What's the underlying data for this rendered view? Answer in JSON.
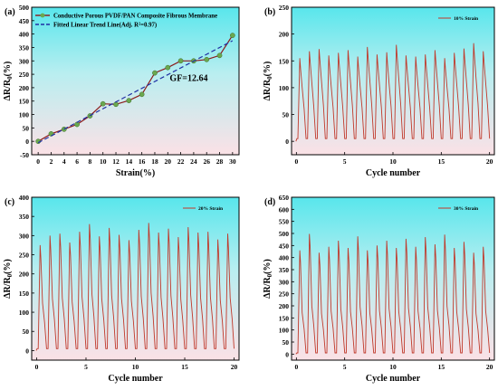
{
  "chart_data": [
    {
      "panel_label": "(a)",
      "type": "line",
      "xlabel": "Strain(%)",
      "ylabel": "ΔR/R0(%)",
      "xlim": [
        -1,
        31
      ],
      "ylim": [
        -50,
        500
      ],
      "xticks": [
        0,
        2,
        4,
        6,
        8,
        10,
        12,
        14,
        16,
        18,
        20,
        22,
        24,
        26,
        28,
        30
      ],
      "yticks": [
        -50,
        0,
        50,
        100,
        150,
        200,
        250,
        300,
        350,
        400,
        450,
        500
      ],
      "background": "gradient cyan-to-pink",
      "legend_position": "top-left",
      "annotation": "GF=12.64",
      "series": [
        {
          "name": "Conductive Porous PVDF/PAN Composite Fibrous Membrane",
          "color": "#8b1a1a",
          "marker_color": "#6aa84f",
          "x": [
            0,
            2,
            4,
            6,
            8,
            10,
            12,
            14,
            16,
            18,
            20,
            22,
            24,
            26,
            28,
            30
          ],
          "y": [
            0,
            28,
            45,
            63,
            95,
            140,
            138,
            152,
            175,
            255,
            275,
            300,
            300,
            305,
            320,
            395
          ]
        },
        {
          "name": "Fitted Linear Trend Line(Adj. R²=0.97)",
          "style": "dashed",
          "color": "#1f2fa3",
          "x": [
            0,
            30
          ],
          "y": [
            -5,
            375
          ]
        }
      ]
    },
    {
      "panel_label": "(b)",
      "type": "line",
      "xlabel": "Cycle number",
      "ylabel": "ΔR/R0(%)",
      "xlim": [
        -0.5,
        20.5
      ],
      "ylim": [
        -25,
        250
      ],
      "xticks": [
        0,
        5,
        10,
        15,
        20
      ],
      "yticks": [
        0,
        50,
        100,
        150,
        200,
        250
      ],
      "legend_position": "top-right",
      "series": [
        {
          "name": "10% Strain",
          "color": "#c0392b",
          "cycles": 20,
          "peaks": [
            155,
            168,
            172,
            160,
            165,
            170,
            158,
            176,
            162,
            166,
            180,
            160,
            158,
            162,
            170,
            155,
            165,
            173,
            183,
            168
          ],
          "shoulder_fraction": 0.65,
          "valley": 5
        }
      ]
    },
    {
      "panel_label": "(c)",
      "type": "line",
      "xlabel": "Cycle number",
      "ylabel": "ΔR/R0(%)",
      "xlim": [
        -0.5,
        20.5
      ],
      "ylim": [
        -25,
        400
      ],
      "xticks": [
        0,
        5,
        10,
        15,
        20
      ],
      "yticks": [
        0,
        50,
        100,
        150,
        200,
        250,
        300,
        350,
        400
      ],
      "legend_position": "top-right",
      "series": [
        {
          "name": "20% Strain",
          "color": "#c0392b",
          "cycles": 20,
          "peaks": [
            275,
            300,
            305,
            282,
            310,
            330,
            298,
            320,
            302,
            288,
            315,
            333,
            308,
            318,
            296,
            322,
            308,
            310,
            290,
            305
          ],
          "shoulder_fraction": 0.45,
          "valley": 5
        }
      ]
    },
    {
      "panel_label": "(d)",
      "type": "line",
      "xlabel": "Cycle number",
      "ylabel": "ΔR/R0(%)",
      "xlim": [
        -0.5,
        20.5
      ],
      "ylim": [
        -25,
        650
      ],
      "xticks": [
        0,
        5,
        10,
        15,
        20
      ],
      "yticks": [
        0,
        50,
        100,
        150,
        200,
        250,
        300,
        350,
        400,
        450,
        500,
        550,
        600,
        650
      ],
      "legend_position": "top-right",
      "series": [
        {
          "name": "30% Strain",
          "color": "#c0392b",
          "cycles": 20,
          "peaks": [
            430,
            498,
            420,
            445,
            470,
            440,
            488,
            430,
            450,
            470,
            440,
            478,
            445,
            485,
            455,
            495,
            440,
            465,
            420,
            445
          ],
          "shoulder_fraction": 0.4,
          "valley": 5
        }
      ]
    }
  ]
}
